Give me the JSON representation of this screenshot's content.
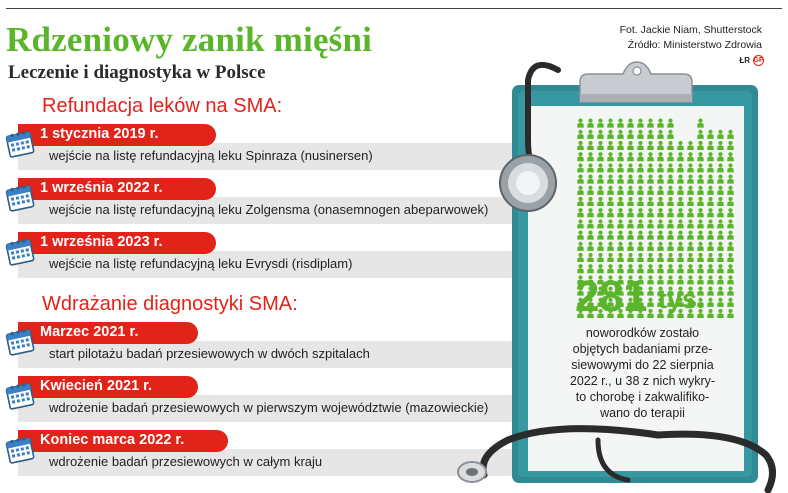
{
  "header": {
    "title": "Rdzeniowy zanik mięśni",
    "subtitle": "Leczenie i diagnostyka w Polsce",
    "credit_photo": "Fot. Jackie Niam, Shutterstock",
    "credit_source": "Źródło: Ministerstwo Zdrowia",
    "logo_text": "ŁR",
    "logo_badge": "GP"
  },
  "refund": {
    "heading": "Refundacja leków na SMA:",
    "items": [
      {
        "date": "1 stycznia 2019 r.",
        "desc": "wejście na listę refundacyjną leku Spinraza (nusinersen)"
      },
      {
        "date": "1 września 2022 r.",
        "desc": "wejście na listę refundacyjną leku Zolgensma (onasemnogen abeparwowek)"
      },
      {
        "date": "1 września 2023 r.",
        "desc": "wejście na listę refundacyjną leku Evrysdi (risdiplam)"
      }
    ]
  },
  "diagnostics": {
    "heading": "Wdrażanie diagnostyki SMA:",
    "items": [
      {
        "date": "Marzec 2021 r.",
        "desc": "start pilotażu badań przesiewowych w dwóch szpitalach"
      },
      {
        "date": "Kwiecień 2021 r.",
        "desc": "wdrożenie badań przesiewowych w pierwszym województwie (mazowieckie)"
      },
      {
        "date": "Koniec marca 2022 r.",
        "desc": "wdrożenie badań przesiewowych w całym kraju"
      }
    ]
  },
  "stat": {
    "number": "281",
    "unit": "tys.",
    "note_lines": [
      "noworodków zostało",
      "objętych badaniami prze-",
      "siewowymi do 22 sierpnia",
      "2022 r., u 38 z nich wykry-",
      "to chorobę i zakwalifiko-",
      "wano do terapii"
    ]
  },
  "colors": {
    "accent_green": "#5ab52a",
    "accent_red": "#e2231a",
    "clipboard_teal": "#2f8a93",
    "gray_bar": "#e6e6e6"
  },
  "icons": [
    "calendar-icon",
    "clipboard-icon",
    "stethoscope-icon",
    "baby-icon"
  ]
}
